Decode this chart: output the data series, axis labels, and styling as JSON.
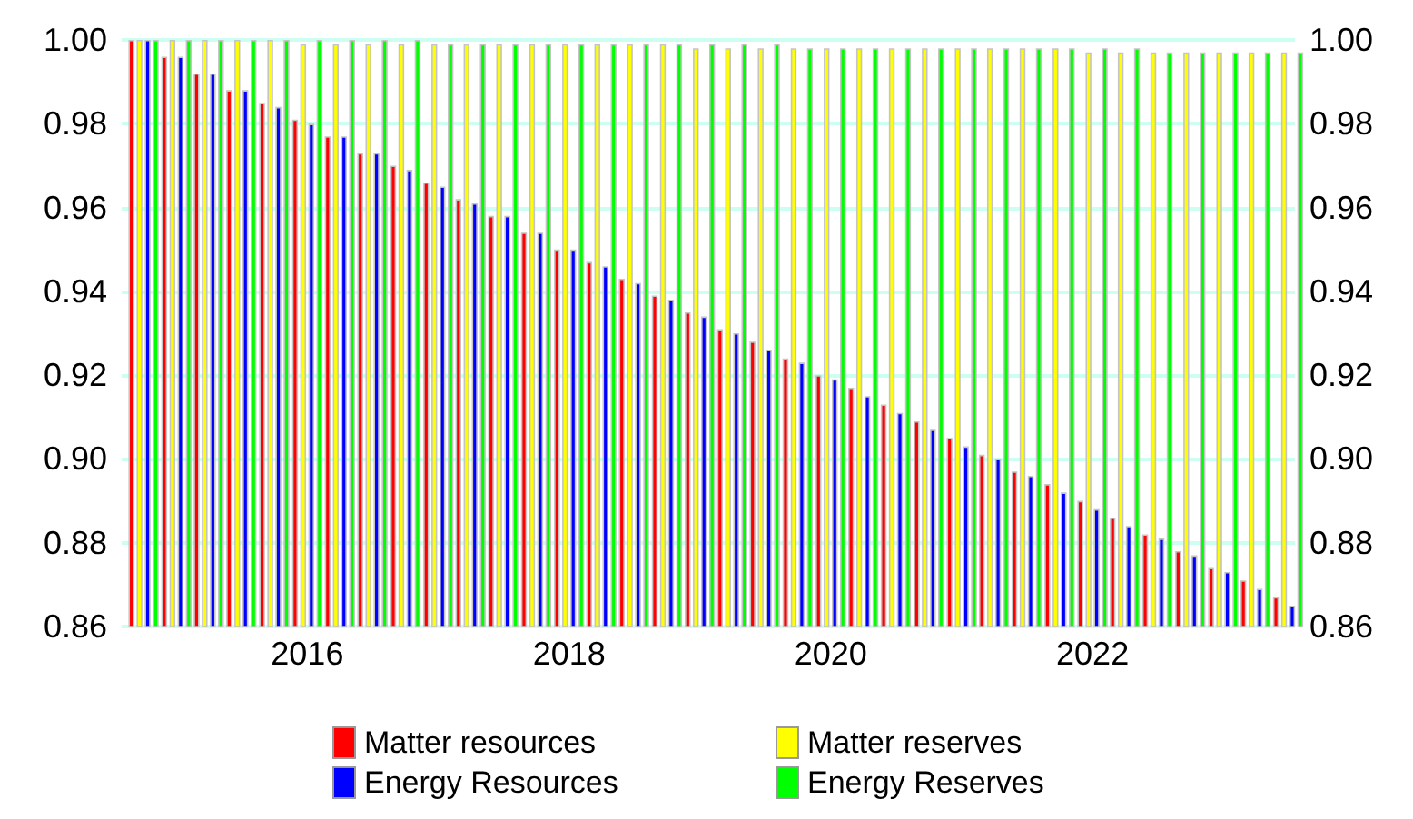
{
  "chart_data": {
    "type": "bar",
    "x": [
      "2014-10",
      "2015-01",
      "2015-04",
      "2015-07",
      "2015-10",
      "2016-01",
      "2016-04",
      "2016-07",
      "2016-10",
      "2017-01",
      "2017-04",
      "2017-07",
      "2017-10",
      "2018-01",
      "2018-04",
      "2018-07",
      "2018-10",
      "2019-01",
      "2019-04",
      "2019-07",
      "2019-10",
      "2020-01",
      "2020-04",
      "2020-07",
      "2020-10",
      "2021-01",
      "2021-04",
      "2021-07",
      "2021-10",
      "2022-01",
      "2022-04",
      "2022-07",
      "2022-10",
      "2023-01",
      "2023-04",
      "2023-07"
    ],
    "series": [
      {
        "name": "Matter resources",
        "color": "#ff0000",
        "values": [
          1.0,
          0.996,
          0.992,
          0.988,
          0.985,
          0.981,
          0.977,
          0.973,
          0.97,
          0.966,
          0.962,
          0.958,
          0.954,
          0.95,
          0.947,
          0.943,
          0.939,
          0.935,
          0.931,
          0.928,
          0.924,
          0.92,
          0.917,
          0.913,
          0.909,
          0.905,
          0.901,
          0.897,
          0.894,
          0.89,
          0.886,
          0.882,
          0.878,
          0.874,
          0.871,
          0.867
        ]
      },
      {
        "name": "Matter reserves",
        "color": "#ffff00",
        "values": [
          1.0,
          1.0,
          1.0,
          1.0,
          1.0,
          0.999,
          0.999,
          0.999,
          0.999,
          0.999,
          0.999,
          0.999,
          0.999,
          0.999,
          0.999,
          0.999,
          0.999,
          0.998,
          0.998,
          0.998,
          0.998,
          0.998,
          0.998,
          0.998,
          0.998,
          0.998,
          0.998,
          0.998,
          0.998,
          0.997,
          0.997,
          0.997,
          0.997,
          0.997,
          0.997,
          0.997
        ]
      },
      {
        "name": "Energy Resources",
        "color": "#0000ff",
        "values": [
          1.0,
          0.996,
          0.992,
          0.988,
          0.984,
          0.98,
          0.977,
          0.973,
          0.969,
          0.965,
          0.961,
          0.958,
          0.954,
          0.95,
          0.946,
          0.942,
          0.938,
          0.934,
          0.93,
          0.926,
          0.923,
          0.919,
          0.915,
          0.911,
          0.907,
          0.903,
          0.9,
          0.896,
          0.892,
          0.888,
          0.884,
          0.881,
          0.877,
          0.873,
          0.869,
          0.865
        ]
      },
      {
        "name": "Energy Reserves",
        "color": "#00ff00",
        "values": [
          1.0,
          1.0,
          1.0,
          1.0,
          1.0,
          1.0,
          1.0,
          1.0,
          1.0,
          0.999,
          0.999,
          0.999,
          0.999,
          0.999,
          0.999,
          0.999,
          0.999,
          0.999,
          0.999,
          0.999,
          0.998,
          0.998,
          0.998,
          0.998,
          0.998,
          0.998,
          0.998,
          0.998,
          0.998,
          0.998,
          0.998,
          0.997,
          0.997,
          0.997,
          0.997,
          0.997
        ]
      }
    ],
    "xlim": [
      "2014-08-01",
      "2023-07-20"
    ],
    "xticks": [
      "2016",
      "2018",
      "2020",
      "2022"
    ],
    "ylim": [
      0.86,
      1.0
    ],
    "yticks": [
      {
        "value": 0.86,
        "label": "0.86"
      },
      {
        "value": 0.88,
        "label": "0.88"
      },
      {
        "value": 0.9,
        "label": "0.90"
      },
      {
        "value": 0.92,
        "label": "0.92"
      },
      {
        "value": 0.94,
        "label": "0.94"
      },
      {
        "value": 0.96,
        "label": "0.96"
      },
      {
        "value": 0.98,
        "label": "0.98"
      },
      {
        "value": 1.0,
        "label": "1.00"
      }
    ],
    "y2lim": [
      0.86,
      1.0
    ],
    "y2ticks": [
      {
        "value": 0.86,
        "label": "0.86"
      },
      {
        "value": 0.88,
        "label": "0.88"
      },
      {
        "value": 0.9,
        "label": "0.90"
      },
      {
        "value": 0.92,
        "label": "0.92"
      },
      {
        "value": 0.94,
        "label": "0.94"
      },
      {
        "value": 0.96,
        "label": "0.96"
      },
      {
        "value": 0.98,
        "label": "0.98"
      },
      {
        "value": 1.0,
        "label": "1.00"
      }
    ],
    "grid": "y",
    "legend": "bottom"
  }
}
